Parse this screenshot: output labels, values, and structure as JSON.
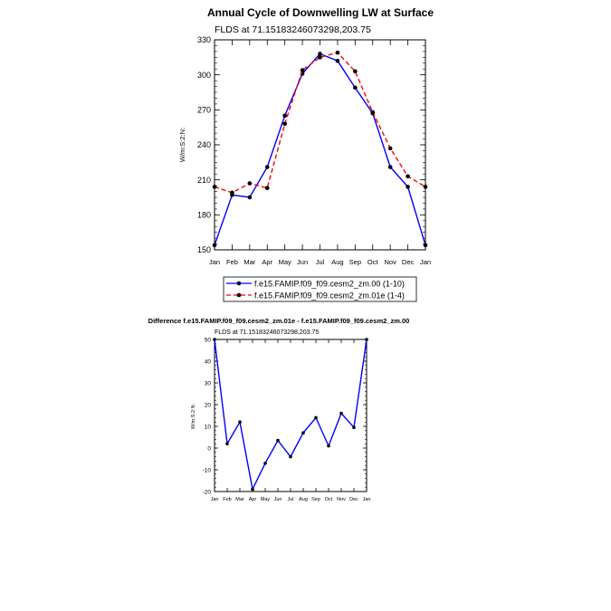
{
  "chart_data": [
    {
      "type": "line",
      "title": "Annual Cycle of Downwelling LW at Surface",
      "subtitle": "FLDS at 71.15183246073298,203.75",
      "ylabel": "W/m:S:2:N:",
      "xlabel": "",
      "categories": [
        "Jan",
        "Feb",
        "Mar",
        "Apr",
        "May",
        "Jun",
        "Jul",
        "Aug",
        "Sep",
        "Oct",
        "Nov",
        "Dec",
        "Jan"
      ],
      "ylim": [
        150,
        330
      ],
      "yticks": [
        150,
        180,
        210,
        240,
        270,
        300,
        330
      ],
      "grid": false,
      "legend_position": "bottom",
      "series": [
        {
          "name": "f.e15.FAMIP.f09_f09.cesm2_zm.00 (1-10)",
          "color": "#0000ff",
          "dash": "solid",
          "values": [
            154,
            197,
            195,
            221,
            265,
            301,
            318,
            312,
            289,
            267,
            221,
            204,
            154
          ]
        },
        {
          "name": "f.e15.FAMIP.f09_f09.cesm2_zm.01e (1-4)",
          "color": "#ff0000",
          "dash": "dashed",
          "values": [
            204,
            199,
            207,
            203,
            258,
            304,
            315,
            319,
            303,
            268,
            237,
            213,
            204
          ]
        }
      ]
    },
    {
      "type": "line",
      "title": "Difference f.e15.FAMIP.f09_f09.cesm2_zm.01e - f.e15.FAMIP.f09_f09.cesm2_zm.00",
      "subtitle": "FLDS at 71.15183246073298,203.75",
      "ylabel": "W/m:S:2:N:",
      "xlabel": "",
      "categories": [
        "Jan",
        "Feb",
        "Mar",
        "Apr",
        "May",
        "Jun",
        "Jul",
        "Aug",
        "Sep",
        "Oct",
        "Nov",
        "Dec",
        "Jan"
      ],
      "ylim": [
        -20,
        50
      ],
      "yticks": [
        -20,
        -10,
        0,
        10,
        20,
        30,
        40,
        50
      ],
      "grid": false,
      "series": [
        {
          "color": "#0000ff",
          "dash": "solid",
          "values": [
            50,
            2,
            12,
            -19,
            -7,
            3.5,
            -4,
            7,
            14,
            1,
            16,
            9.5,
            50
          ]
        }
      ]
    }
  ]
}
